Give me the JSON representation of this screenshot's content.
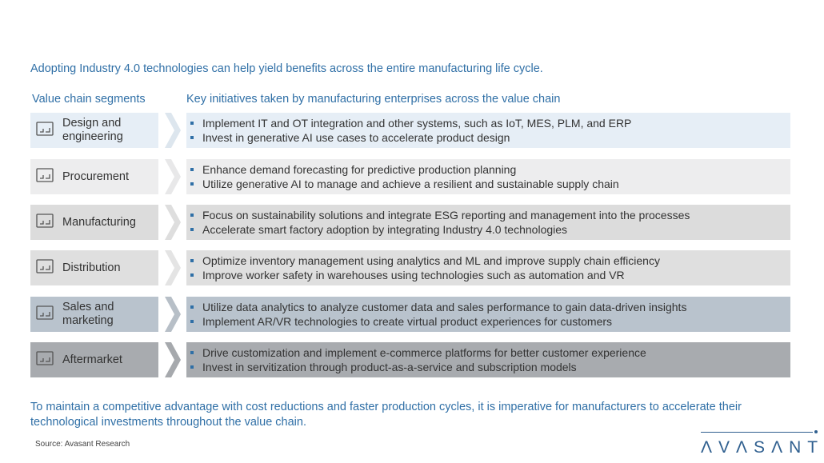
{
  "intro": "Adopting Industry 4.0 technologies can help yield benefits across the entire manufacturing life cycle.",
  "headers": {
    "segments": "Value chain segments",
    "initiatives": "Key initiatives taken by manufacturing enterprises across the value chain"
  },
  "rows": [
    {
      "segment": "Design and engineering",
      "icon": "blueprint-icon",
      "color": "#e6eef6",
      "arrow": "#dde6ee",
      "items": [
        "Implement IT and OT integration and other systems, such as IoT, MES, PLM, and ERP",
        "Invest in generative AI use cases to accelerate product design"
      ]
    },
    {
      "segment": "Procurement",
      "icon": "globe-network-icon",
      "color": "#ededee",
      "arrow": "#e8e8e9",
      "items": [
        "Enhance demand forecasting for predictive production planning",
        "Utilize generative AI to manage and achieve a resilient and sustainable supply chain"
      ]
    },
    {
      "segment": "Manufacturing",
      "icon": "factory-icon",
      "color": "#dcdcdc",
      "arrow": "#dedede",
      "items": [
        "Focus on sustainability solutions and integrate ESG reporting and management into the processes",
        "Accelerate smart factory adoption by integrating Industry 4.0 technologies"
      ]
    },
    {
      "segment": "Distribution",
      "icon": "warehouse-icon",
      "color": "#dfdfdf",
      "arrow": "#e4e4e4",
      "items": [
        "Optimize inventory management using analytics and ML and improve supply chain efficiency",
        "Improve worker safety in warehouses using technologies such as automation and VR"
      ]
    },
    {
      "segment": "Sales and marketing",
      "icon": "people-search-icon",
      "color": "#b9c3cd",
      "arrow": "#b7bfc7",
      "items": [
        "Utilize data analytics to analyze customer data and sales performance to gain data-driven insights",
        "Implement AR/VR technologies to create virtual product experiences for customers"
      ]
    },
    {
      "segment": "Aftermarket",
      "icon": "hands-person-icon",
      "color": "#a8abaf",
      "arrow": "#a6a9ad",
      "items": [
        "Drive customization and implement e-commerce platforms for better customer experience",
        "Invest in servitization through product-as-a-service and subscription models"
      ]
    }
  ],
  "outro": "To maintain a competitive advantage with cost reductions and faster production cycles, it is imperative for manufacturers to accelerate their technological investments throughout the value chain.",
  "source": "Source: Avasant Research",
  "logo": "AVASANT"
}
